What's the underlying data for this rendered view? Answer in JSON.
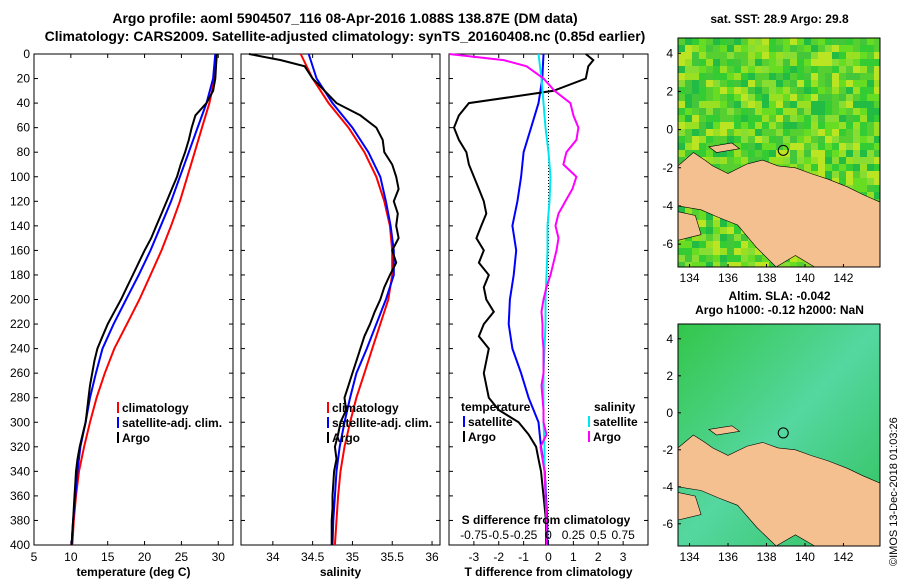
{
  "titles": {
    "line1": "Argo profile: aoml 5904507_116 08-Apr-2016 1.088S 138.87E (DM data)",
    "line2": "Climatology: CARS2009. Satellite-adjusted climatology: synTS_20160408.nc (0.85d earlier)"
  },
  "maps": {
    "sst_title": "sat. SST: 28.9 Argo: 29.8",
    "sla_title1": "Altim. SLA: -0.042",
    "sla_title2": "Argo h1000: -0.12 h2000: NaN",
    "x_ticks": [
      134,
      136,
      138,
      140,
      142
    ],
    "y_ticks": [
      4,
      2,
      0,
      -2,
      -4,
      -6
    ],
    "float_position": {
      "lon": 138.87,
      "lat": -1.088
    }
  },
  "credit": "©IMOS 13-Dec-2018 01:03:26",
  "colors": {
    "climatology": "#ff0000",
    "satellite": "#0000ff",
    "argo": "#000000",
    "sal_satellite": "#00e5ee",
    "sal_argo": "#ff00ff",
    "land": "#f5c08f"
  },
  "chart_data": [
    {
      "type": "line",
      "xlabel": "temperature (deg C)",
      "ylabel": "depth",
      "xlim": [
        5,
        32
      ],
      "ylim": [
        400,
        0
      ],
      "xticks": [
        5,
        10,
        15,
        20,
        25,
        30
      ],
      "yticks": [
        0,
        20,
        40,
        60,
        80,
        100,
        120,
        140,
        160,
        180,
        200,
        220,
        240,
        260,
        280,
        300,
        320,
        340,
        360,
        380,
        400
      ],
      "legend": [
        "climatology",
        "satellite-adj. clim.",
        "Argo"
      ],
      "series": [
        {
          "name": "climatology",
          "color": "#ff0000",
          "depth": [
            0,
            20,
            40,
            60,
            80,
            100,
            120,
            140,
            160,
            180,
            200,
            220,
            240,
            260,
            280,
            300,
            320,
            340,
            360,
            380,
            400
          ],
          "values": [
            29.8,
            29.5,
            28.8,
            27.8,
            26.8,
            25.8,
            24.8,
            23.6,
            22.3,
            20.8,
            19.3,
            17.6,
            15.9,
            14.6,
            13.5,
            12.6,
            11.8,
            11.1,
            10.7,
            10.4,
            10.2
          ]
        },
        {
          "name": "satellite-adj. clim.",
          "color": "#0000ff",
          "depth": [
            0,
            20,
            40,
            60,
            80,
            100,
            120,
            140,
            160,
            180,
            200,
            220,
            240,
            260,
            280,
            300,
            320,
            340,
            360,
            380,
            400
          ],
          "values": [
            29.6,
            29.3,
            28.4,
            27.2,
            26.0,
            24.8,
            23.6,
            22.2,
            20.8,
            19.2,
            17.5,
            15.8,
            14.3,
            13.4,
            12.6,
            12.0,
            11.3,
            10.9,
            10.6,
            10.3,
            10.1
          ]
        },
        {
          "name": "Argo",
          "color": "#000000",
          "depth": [
            0,
            10,
            20,
            30,
            40,
            50,
            60,
            70,
            80,
            90,
            100,
            110,
            120,
            130,
            140,
            150,
            160,
            170,
            180,
            190,
            200,
            210,
            220,
            230,
            240,
            250,
            260,
            270,
            280,
            290,
            300,
            310,
            320,
            330,
            340,
            350,
            360,
            370,
            380,
            390,
            400
          ],
          "values": [
            29.8,
            29.7,
            29.6,
            29.3,
            28.4,
            26.9,
            26.4,
            26.0,
            25.5,
            24.9,
            24.4,
            23.7,
            23.0,
            22.3,
            21.6,
            20.9,
            20.0,
            19.2,
            18.4,
            17.6,
            16.8,
            15.9,
            15.0,
            14.3,
            13.6,
            13.2,
            12.9,
            12.6,
            12.4,
            12.2,
            12.0,
            11.6,
            11.2,
            10.9,
            10.7,
            10.6,
            10.5,
            10.4,
            10.3,
            10.2,
            10.1
          ]
        }
      ]
    },
    {
      "type": "line",
      "xlabel": "salinity",
      "ylabel": "depth",
      "xlim": [
        33.6,
        36.1
      ],
      "ylim": [
        400,
        0
      ],
      "xticks": [
        34,
        34.5,
        35,
        35.5,
        36
      ],
      "legend": [
        "climatology",
        "satellite-adj. clim.",
        "Argo"
      ],
      "series": [
        {
          "name": "climatology",
          "color": "#ff0000",
          "depth": [
            0,
            20,
            40,
            60,
            80,
            100,
            120,
            140,
            160,
            180,
            200,
            220,
            240,
            260,
            280,
            300,
            320,
            340,
            360,
            380,
            400
          ],
          "values": [
            34.35,
            34.5,
            34.7,
            34.95,
            35.15,
            35.3,
            35.4,
            35.47,
            35.5,
            35.5,
            35.45,
            35.35,
            35.25,
            35.15,
            35.05,
            34.97,
            34.9,
            34.85,
            34.82,
            34.8,
            34.78
          ]
        },
        {
          "name": "satellite-adj. clim.",
          "color": "#0000ff",
          "depth": [
            0,
            20,
            40,
            60,
            80,
            100,
            120,
            140,
            160,
            180,
            200,
            220,
            240,
            260,
            280,
            300,
            320,
            340,
            360,
            380,
            400
          ],
          "values": [
            34.45,
            34.55,
            34.75,
            35.0,
            35.2,
            35.35,
            35.42,
            35.48,
            35.52,
            35.52,
            35.42,
            35.3,
            35.18,
            35.05,
            34.97,
            34.9,
            34.84,
            34.8,
            34.78,
            34.76,
            34.75
          ]
        },
        {
          "name": "Argo",
          "color": "#000000",
          "depth": [
            0,
            5,
            10,
            20,
            30,
            40,
            50,
            60,
            70,
            80,
            90,
            100,
            110,
            120,
            130,
            140,
            150,
            160,
            170,
            180,
            190,
            200,
            210,
            220,
            230,
            240,
            250,
            260,
            270,
            280,
            290,
            300,
            310,
            320,
            330,
            340,
            350,
            360,
            370,
            380,
            390,
            400
          ],
          "values": [
            33.7,
            34.1,
            34.4,
            34.5,
            34.65,
            34.8,
            35.1,
            35.3,
            35.38,
            35.4,
            35.5,
            35.55,
            35.58,
            35.52,
            35.57,
            35.55,
            35.58,
            35.5,
            35.55,
            35.47,
            35.4,
            35.35,
            35.28,
            35.22,
            35.15,
            35.1,
            35.05,
            35.0,
            34.95,
            34.9,
            34.92,
            34.85,
            34.82,
            34.78,
            34.8,
            34.77,
            34.76,
            34.75,
            34.75,
            34.74,
            34.74,
            34.74
          ]
        }
      ]
    },
    {
      "type": "line",
      "xlabel": "T difference from climatology",
      "xlabel_top": "S difference from climatology",
      "xlim": [
        -4,
        4
      ],
      "xlim_top": [
        -1,
        1
      ],
      "ylim": [
        400,
        0
      ],
      "xticks": [
        -3,
        -2,
        -1,
        0,
        1,
        2,
        3
      ],
      "xticks_top": [
        -0.75,
        -0.5,
        -0.25,
        0,
        0.25,
        0.5,
        0.75
      ],
      "xticks_top_labels": [
        "-0.75",
        "-0.5",
        "-0.25",
        "0",
        "0.25",
        "0.5",
        "0.75"
      ],
      "legend_temperature_title": "temperature",
      "legend_salinity_title": "salinity",
      "legend": [
        "satellite",
        "Argo",
        "satellite",
        "Argo"
      ],
      "series": [
        {
          "name": "T satellite",
          "axis": "T",
          "color": "#0000ff",
          "depth": [
            0,
            20,
            40,
            60,
            80,
            100,
            120,
            140,
            160,
            180,
            200,
            220,
            240,
            260,
            280,
            300,
            320,
            340,
            360,
            380,
            400
          ],
          "values": [
            -0.2,
            -0.25,
            -0.4,
            -0.7,
            -1.0,
            -1.1,
            -1.25,
            -1.45,
            -1.3,
            -1.4,
            -1.55,
            -1.6,
            -1.45,
            -1.1,
            -0.8,
            -0.4,
            -0.3,
            -0.15,
            -0.1,
            -0.05,
            -0.05
          ]
        },
        {
          "name": "T Argo",
          "axis": "T",
          "color": "#000000",
          "depth": [
            0,
            5,
            10,
            20,
            30,
            35,
            40,
            50,
            60,
            70,
            80,
            90,
            100,
            110,
            120,
            130,
            140,
            150,
            160,
            170,
            180,
            190,
            200,
            210,
            220,
            230,
            240,
            250,
            260,
            270,
            280,
            290,
            300,
            310,
            320,
            330,
            340,
            360,
            380,
            400
          ],
          "values": [
            1.5,
            1.8,
            1.6,
            1.5,
            0.2,
            -1.5,
            -3.2,
            -3.6,
            -3.8,
            -3.6,
            -3.3,
            -3.2,
            -3.0,
            -2.8,
            -2.6,
            -2.5,
            -2.7,
            -2.9,
            -2.6,
            -2.8,
            -2.4,
            -2.6,
            -2.5,
            -2.2,
            -2.6,
            -2.8,
            -2.4,
            -2.5,
            -2.6,
            -2.5,
            -2.4,
            -2.0,
            -1.2,
            -0.8,
            -0.5,
            -0.4,
            -0.3,
            -0.2,
            -0.1,
            -0.1
          ]
        },
        {
          "name": "S satellite",
          "axis": "S",
          "color": "#00e5ee",
          "depth": [
            0,
            20,
            40,
            60,
            80,
            100,
            120,
            140,
            160,
            180,
            200,
            220,
            240,
            260,
            280,
            300,
            320,
            340,
            360,
            380,
            400
          ],
          "values": [
            -0.1,
            -0.07,
            -0.05,
            -0.03,
            0.0,
            0.02,
            0.01,
            -0.01,
            -0.01,
            -0.02,
            -0.03,
            -0.03,
            -0.04,
            -0.05,
            -0.05,
            -0.05,
            -0.04,
            -0.04,
            -0.03,
            -0.02,
            -0.02
          ]
        },
        {
          "name": "S Argo",
          "axis": "S",
          "color": "#ff00ff",
          "depth": [
            0,
            5,
            10,
            20,
            30,
            40,
            50,
            60,
            70,
            80,
            90,
            100,
            110,
            120,
            130,
            140,
            150,
            160,
            170,
            180,
            190,
            200,
            210,
            220,
            230,
            240,
            250,
            260,
            270,
            280,
            290,
            300,
            310,
            320,
            340,
            360,
            380,
            400
          ],
          "values": [
            -1.0,
            -0.45,
            -0.22,
            -0.05,
            0.06,
            0.22,
            0.25,
            0.3,
            0.28,
            0.18,
            0.15,
            0.28,
            0.24,
            0.17,
            0.1,
            0.07,
            0.1,
            0.08,
            0.05,
            0.02,
            -0.02,
            -0.05,
            -0.07,
            -0.06,
            -0.06,
            -0.05,
            -0.05,
            -0.05,
            -0.07,
            -0.06,
            -0.05,
            -0.05,
            -0.02,
            -0.08,
            -0.04,
            -0.03,
            -0.02,
            -0.02
          ]
        }
      ]
    }
  ]
}
